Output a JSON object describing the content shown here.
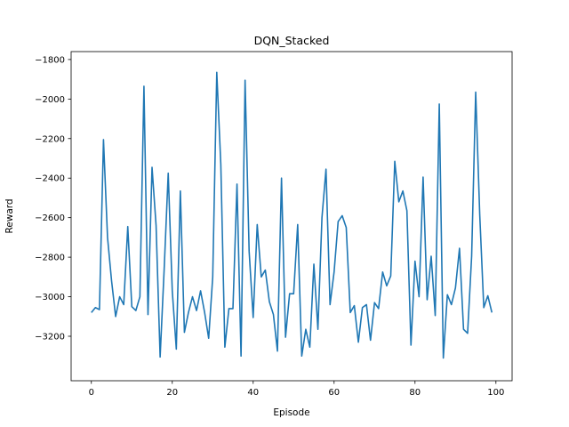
{
  "chart_data": {
    "type": "line",
    "title": "DQN_Stacked",
    "xlabel": "Episode",
    "ylabel": "Reward",
    "xlim": [
      -5,
      104
    ],
    "ylim": [
      -3425,
      -1760
    ],
    "x_ticks": [
      0,
      20,
      40,
      60,
      80,
      100
    ],
    "y_ticks": [
      -1800,
      -2000,
      -2200,
      -2400,
      -2600,
      -2800,
      -3000,
      -3200
    ],
    "x_tick_labels": [
      "0",
      "20",
      "40",
      "60",
      "80",
      "100"
    ],
    "y_tick_labels": [
      "−1800",
      "−2000",
      "−2200",
      "−2400",
      "−2600",
      "−2800",
      "−3000",
      "−3200"
    ],
    "grid": false,
    "line_color": "#1f77b4",
    "series": [
      {
        "x": [
          0,
          1,
          2,
          3,
          4,
          5,
          6,
          7,
          8,
          9,
          10,
          11,
          12,
          13,
          14,
          15,
          16,
          17,
          18,
          19,
          20,
          21,
          22,
          23,
          24,
          25,
          26,
          27,
          28,
          29,
          30,
          31,
          32,
          33,
          34,
          35,
          36,
          37,
          38,
          39,
          40,
          41,
          42,
          43,
          44,
          45,
          46,
          47,
          48,
          49,
          50,
          51,
          52,
          53,
          54,
          55,
          56,
          57,
          58,
          59,
          60,
          61,
          62,
          63,
          64,
          65,
          66,
          67,
          68,
          69,
          70,
          71,
          72,
          73,
          74,
          75,
          76,
          77,
          78,
          79,
          80,
          81,
          82,
          83,
          84,
          85,
          86,
          87,
          88,
          89,
          90,
          91,
          92,
          93,
          94,
          95,
          96,
          97,
          98,
          99
        ],
        "values": [
          -3080,
          -3055,
          -3065,
          -2205,
          -2700,
          -2920,
          -3100,
          -3000,
          -3040,
          -2645,
          -3050,
          -3070,
          -3000,
          -1935,
          -3090,
          -2345,
          -2640,
          -3305,
          -2860,
          -2375,
          -2970,
          -3265,
          -2465,
          -3180,
          -3080,
          -3000,
          -3070,
          -2970,
          -3080,
          -3210,
          -2900,
          -1865,
          -2330,
          -3255,
          -3060,
          -3060,
          -2430,
          -3300,
          -1905,
          -2770,
          -3105,
          -2635,
          -2900,
          -2865,
          -3025,
          -3090,
          -3275,
          -2400,
          -3205,
          -2985,
          -2985,
          -2635,
          -3300,
          -3165,
          -3255,
          -2835,
          -3165,
          -2600,
          -2355,
          -3040,
          -2875,
          -2620,
          -2590,
          -2650,
          -3080,
          -3045,
          -3230,
          -3055,
          -3040,
          -3220,
          -3030,
          -3060,
          -2875,
          -2945,
          -2895,
          -2315,
          -2520,
          -2465,
          -2565,
          -3245,
          -2820,
          -3000,
          -2395,
          -3015,
          -2795,
          -3095,
          -2025,
          -3310,
          -2990,
          -3040,
          -2955,
          -2755,
          -3165,
          -3185,
          -2795,
          -1965,
          -2585,
          -3055,
          -2995,
          -3080
        ]
      }
    ]
  }
}
